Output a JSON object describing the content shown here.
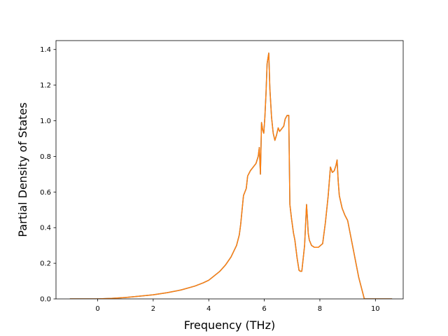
{
  "chart_data": {
    "type": "line",
    "title": "",
    "xlabel": "Frequency (THz)",
    "ylabel": "Partial Density of States",
    "xlim": [
      -1.5,
      11.0
    ],
    "ylim": [
      0.0,
      1.45
    ],
    "xticks": [
      0,
      2,
      4,
      6,
      8,
      10
    ],
    "yticks": [
      0.0,
      0.2,
      0.4,
      0.6,
      0.8,
      1.0,
      1.2,
      1.4
    ],
    "grid": false,
    "legend": "none",
    "series": [
      {
        "color": "#1f77b4",
        "x": [
          -1.0,
          0.0,
          0.5,
          1.0,
          1.5,
          2.0,
          2.5,
          3.0,
          3.5,
          3.8,
          4.0,
          4.2,
          4.4,
          4.6,
          4.8,
          5.0,
          5.1,
          5.15,
          5.25,
          5.35,
          5.4,
          5.5,
          5.6,
          5.7,
          5.78,
          5.82,
          5.86,
          5.9,
          5.94,
          5.98,
          6.02,
          6.06,
          6.1,
          6.16,
          6.2,
          6.26,
          6.32,
          6.38,
          6.44,
          6.5,
          6.55,
          6.6,
          6.7,
          6.75,
          6.82,
          6.88,
          6.92,
          6.98,
          7.05,
          7.1,
          7.18,
          7.25,
          7.3,
          7.35,
          7.45,
          7.52,
          7.55,
          7.58,
          7.62,
          7.7,
          7.8,
          7.95,
          8.1,
          8.2,
          8.3,
          8.38,
          8.45,
          8.52,
          8.58,
          8.62,
          8.66,
          8.7,
          8.8,
          8.9,
          9.0,
          9.1,
          9.2,
          9.3,
          9.4,
          9.5,
          9.6,
          9.7,
          10.0,
          10.3,
          10.6
        ],
        "values": [
          0.0,
          0.0,
          0.003,
          0.008,
          0.015,
          0.023,
          0.035,
          0.05,
          0.072,
          0.09,
          0.105,
          0.13,
          0.155,
          0.19,
          0.235,
          0.3,
          0.36,
          0.42,
          0.58,
          0.62,
          0.69,
          0.72,
          0.74,
          0.76,
          0.8,
          0.85,
          0.7,
          0.99,
          0.95,
          0.93,
          1.02,
          1.15,
          1.32,
          1.38,
          1.18,
          1.02,
          0.93,
          0.89,
          0.92,
          0.96,
          0.94,
          0.95,
          0.97,
          1.01,
          1.03,
          1.03,
          0.53,
          0.45,
          0.37,
          0.33,
          0.23,
          0.16,
          0.155,
          0.155,
          0.3,
          0.53,
          0.46,
          0.37,
          0.33,
          0.3,
          0.29,
          0.29,
          0.31,
          0.43,
          0.58,
          0.74,
          0.71,
          0.72,
          0.75,
          0.78,
          0.66,
          0.58,
          0.51,
          0.47,
          0.44,
          0.36,
          0.28,
          0.2,
          0.12,
          0.06,
          0.0,
          0.0,
          0.0,
          0.0,
          0.0
        ]
      },
      {
        "color": "#ff7f0e",
        "x": [
          -1.0,
          0.0,
          0.5,
          1.0,
          1.5,
          2.0,
          2.5,
          3.0,
          3.5,
          3.8,
          4.0,
          4.2,
          4.4,
          4.6,
          4.8,
          5.0,
          5.1,
          5.15,
          5.25,
          5.35,
          5.4,
          5.5,
          5.6,
          5.7,
          5.78,
          5.82,
          5.86,
          5.9,
          5.94,
          5.98,
          6.02,
          6.06,
          6.1,
          6.16,
          6.2,
          6.26,
          6.32,
          6.38,
          6.44,
          6.5,
          6.55,
          6.6,
          6.7,
          6.75,
          6.82,
          6.88,
          6.92,
          6.98,
          7.05,
          7.1,
          7.18,
          7.25,
          7.3,
          7.35,
          7.45,
          7.52,
          7.55,
          7.58,
          7.62,
          7.7,
          7.8,
          7.95,
          8.1,
          8.2,
          8.3,
          8.38,
          8.45,
          8.52,
          8.58,
          8.62,
          8.66,
          8.7,
          8.8,
          8.9,
          9.0,
          9.1,
          9.2,
          9.3,
          9.4,
          9.5,
          9.6,
          9.7,
          10.0,
          10.3,
          10.6
        ],
        "values": [
          0.0,
          0.0,
          0.003,
          0.008,
          0.015,
          0.023,
          0.035,
          0.05,
          0.072,
          0.09,
          0.105,
          0.13,
          0.155,
          0.19,
          0.235,
          0.3,
          0.36,
          0.42,
          0.58,
          0.62,
          0.69,
          0.72,
          0.74,
          0.76,
          0.8,
          0.85,
          0.7,
          0.99,
          0.95,
          0.93,
          1.02,
          1.15,
          1.32,
          1.38,
          1.18,
          1.02,
          0.93,
          0.89,
          0.92,
          0.96,
          0.94,
          0.95,
          0.97,
          1.01,
          1.03,
          1.03,
          0.53,
          0.45,
          0.37,
          0.33,
          0.23,
          0.16,
          0.155,
          0.155,
          0.3,
          0.53,
          0.46,
          0.37,
          0.33,
          0.3,
          0.29,
          0.29,
          0.31,
          0.43,
          0.58,
          0.74,
          0.71,
          0.72,
          0.75,
          0.78,
          0.66,
          0.58,
          0.51,
          0.47,
          0.44,
          0.36,
          0.28,
          0.2,
          0.12,
          0.06,
          0.0,
          0.0,
          0.0,
          0.0,
          0.0
        ]
      }
    ]
  }
}
